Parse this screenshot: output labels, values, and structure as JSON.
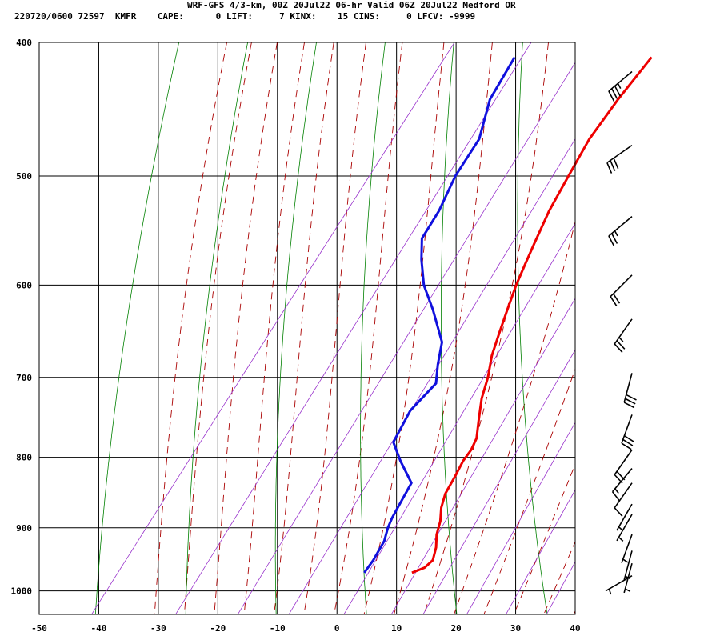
{
  "header": {
    "title": "WRF-GFS 4/3-km, 00Z 20Jul22 06-hr Valid 06Z 20Jul22 Medford OR",
    "station_line": "220720/0600 72597  KMFR    CAPE:      0 LIFT:     7 KINX:    15 CINS:     0 LFCV: -9999"
  },
  "colors": {
    "temperature": "#ee0000",
    "dewpoint": "#1010dd",
    "isotherm_grid": "#000000",
    "dry_adiabat": "#008000",
    "moist_adiabat": "#aa0000",
    "mixing_ratio": "#9933cc",
    "wind_barb": "#000000"
  },
  "chart_data": {
    "type": "line",
    "title": "",
    "xlabel": "",
    "ylabel": "",
    "chart_kind": "skew-T log-p sounding",
    "xlim": [
      -50,
      40
    ],
    "ylim": [
      1040,
      400
    ],
    "y_scale": "log",
    "grid": true,
    "x_ticks": [
      "-50",
      "-40",
      "-30",
      "-20",
      "-10",
      "0",
      "10",
      "20",
      "30",
      "40"
    ],
    "y_ticks": [
      "400",
      "500",
      "600",
      "700",
      "800",
      "900",
      "1000"
    ],
    "series": [
      {
        "key": "temperature",
        "points": [
          [
            410,
            -15.0
          ],
          [
            440,
            -15.5
          ],
          [
            470,
            -15.5
          ],
          [
            500,
            -14.5
          ],
          [
            530,
            -13.5
          ],
          [
            560,
            -12.0
          ],
          [
            580,
            -11.0
          ],
          [
            600,
            -10.0
          ],
          [
            625,
            -8.5
          ],
          [
            650,
            -7.0
          ],
          [
            675,
            -5.5
          ],
          [
            700,
            -3.5
          ],
          [
            725,
            -2.0
          ],
          [
            750,
            0.0
          ],
          [
            775,
            2.0
          ],
          [
            790,
            2.5
          ],
          [
            805,
            2.5
          ],
          [
            825,
            3.0
          ],
          [
            850,
            3.5
          ],
          [
            870,
            4.5
          ],
          [
            890,
            6.0
          ],
          [
            910,
            7.0
          ],
          [
            930,
            8.5
          ],
          [
            950,
            9.5
          ],
          [
            962,
            9.0
          ],
          [
            970,
            7.5
          ]
        ]
      },
      {
        "key": "dewpoint",
        "points": [
          [
            410,
            -38.0
          ],
          [
            440,
            -37.0
          ],
          [
            470,
            -34.0
          ],
          [
            500,
            -33.5
          ],
          [
            530,
            -32.0
          ],
          [
            555,
            -31.5
          ],
          [
            575,
            -29.0
          ],
          [
            600,
            -25.5
          ],
          [
            625,
            -21.0
          ],
          [
            660,
            -15.5
          ],
          [
            685,
            -13.5
          ],
          [
            707,
            -11.5
          ],
          [
            740,
            -12.5
          ],
          [
            780,
            -11.5
          ],
          [
            805,
            -8.0
          ],
          [
            835,
            -3.5
          ],
          [
            860,
            -3.0
          ],
          [
            885,
            -2.5
          ],
          [
            900,
            -2.0
          ],
          [
            920,
            -1.0
          ],
          [
            950,
            -0.5
          ],
          [
            970,
            -0.5
          ]
        ]
      }
    ],
    "wind_barbs": [
      {
        "p": 420,
        "from_deg": 230,
        "speed_kt": 35
      },
      {
        "p": 475,
        "from_deg": 235,
        "speed_kt": 30
      },
      {
        "p": 535,
        "from_deg": 230,
        "speed_kt": 25
      },
      {
        "p": 590,
        "from_deg": 225,
        "speed_kt": 20
      },
      {
        "p": 635,
        "from_deg": 215,
        "speed_kt": 25
      },
      {
        "p": 695,
        "from_deg": 195,
        "speed_kt": 30
      },
      {
        "p": 745,
        "from_deg": 200,
        "speed_kt": 30
      },
      {
        "p": 790,
        "from_deg": 215,
        "speed_kt": 20
      },
      {
        "p": 815,
        "from_deg": 220,
        "speed_kt": 15
      },
      {
        "p": 835,
        "from_deg": 215,
        "speed_kt": 10
      },
      {
        "p": 865,
        "from_deg": 210,
        "speed_kt": 5
      },
      {
        "p": 880,
        "from_deg": 210,
        "speed_kt": 5
      },
      {
        "p": 910,
        "from_deg": 200,
        "speed_kt": 5
      },
      {
        "p": 935,
        "from_deg": 195,
        "speed_kt": 5
      },
      {
        "p": 955,
        "from_deg": 195,
        "speed_kt": 5
      },
      {
        "p": 975,
        "from_deg": 240,
        "speed_kt": 5
      }
    ]
  }
}
